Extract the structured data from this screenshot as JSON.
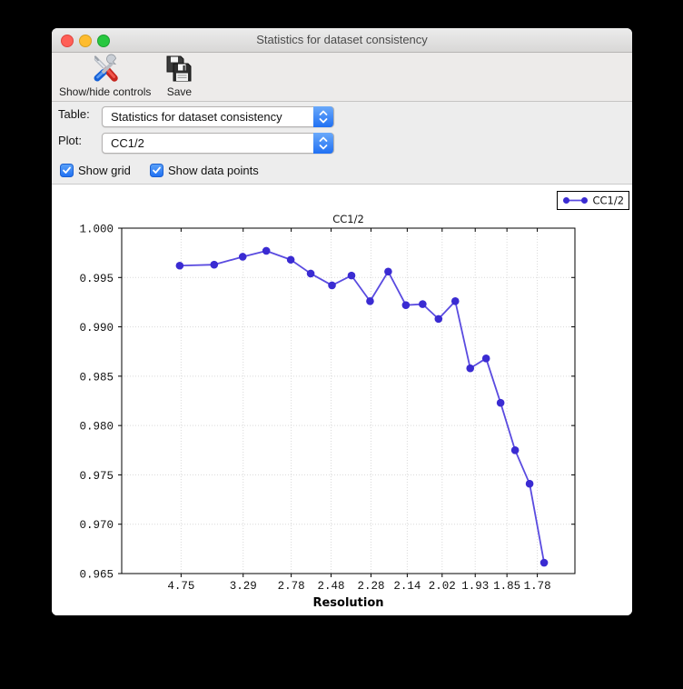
{
  "window": {
    "title": "Statistics for dataset consistency"
  },
  "toolbar": {
    "buttons": [
      {
        "label": "Show/hide controls",
        "icon": "tools-icon"
      },
      {
        "label": "Save",
        "icon": "save-icon"
      }
    ]
  },
  "controls": {
    "table": {
      "label": "Table:",
      "value": "Statistics for dataset consistency"
    },
    "plot": {
      "label": "Plot:",
      "value": "CC1/2"
    },
    "checkboxes": [
      {
        "label": "Show grid",
        "checked": true
      },
      {
        "label": "Show data points",
        "checked": true
      }
    ]
  },
  "colors": {
    "accent_blue": "#2f7cf5",
    "line": "#5a4be0",
    "marker": "#3a2bd2",
    "grid": "#d9d9d9",
    "axis": "#000000",
    "traffic_red": "#ff5f57",
    "traffic_yellow": "#febc2e",
    "traffic_green": "#28c840"
  },
  "chart_data": {
    "type": "line",
    "title": "CC1/2",
    "xlabel": "Resolution",
    "legend": {
      "label": "CC1/2",
      "position": "top-right-outside"
    },
    "grid": true,
    "show_markers": true,
    "y_axis": {
      "min": 0.965,
      "max": 1.0,
      "tick_labels": [
        "1.000",
        "0.995",
        "0.990",
        "0.985",
        "0.980",
        "0.975",
        "0.970",
        "0.965"
      ]
    },
    "x_ticks": {
      "labels": [
        "4.75",
        "3.29",
        "2.78",
        "2.48",
        "2.28",
        "2.14",
        "2.02",
        "1.93",
        "1.85",
        "1.78"
      ],
      "positions": [
        0.131,
        0.268,
        0.374,
        0.462,
        0.55,
        0.63,
        0.707,
        0.78,
        0.85,
        0.917
      ]
    },
    "series": [
      {
        "name": "CC1/2",
        "x_fraction": [
          0.128,
          0.204,
          0.267,
          0.319,
          0.373,
          0.417,
          0.464,
          0.507,
          0.548,
          0.588,
          0.627,
          0.664,
          0.699,
          0.736,
          0.769,
          0.804,
          0.836,
          0.868,
          0.9,
          0.932
        ],
        "values": [
          0.9962,
          0.9963,
          0.9971,
          0.9977,
          0.9968,
          0.9954,
          0.9942,
          0.9952,
          0.9926,
          0.9956,
          0.9922,
          0.9923,
          0.9908,
          0.9926,
          0.9858,
          0.9868,
          0.9823,
          0.9775,
          0.9741,
          0.9661
        ]
      }
    ]
  }
}
